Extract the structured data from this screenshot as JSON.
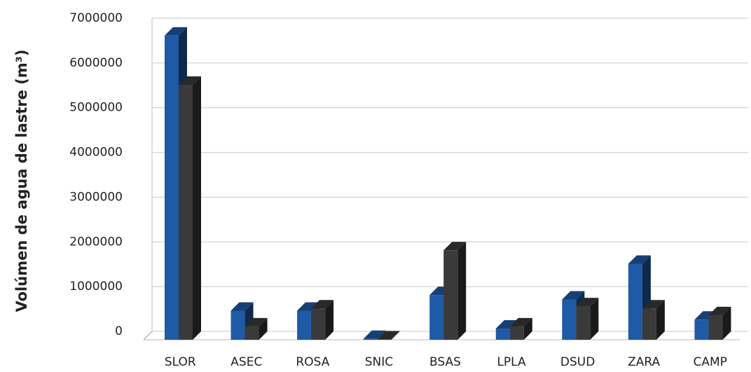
{
  "chart_data": {
    "type": "bar3d",
    "y_label": "Volúmen de agua de lastre (m³)",
    "categories": [
      "SLOR",
      "ASEC",
      "ROSA",
      "SNIC",
      "BSAS",
      "LPLA",
      "DSUD",
      "ZARA",
      "CAMP"
    ],
    "series": [
      {
        "color": "#1f5aa6",
        "values": [
          6800000,
          650000,
          650000,
          20000,
          1000000,
          250000,
          900000,
          1700000,
          450000
        ]
      },
      {
        "color": "#3a3a3a",
        "values": [
          5700000,
          300000,
          700000,
          10000,
          2000000,
          300000,
          750000,
          700000,
          550000
        ]
      }
    ],
    "ylim": [
      0,
      7000000
    ],
    "yticks": [
      0,
      1000000,
      2000000,
      3000000,
      4000000,
      5000000,
      6000000,
      7000000
    ],
    "grid": true
  }
}
